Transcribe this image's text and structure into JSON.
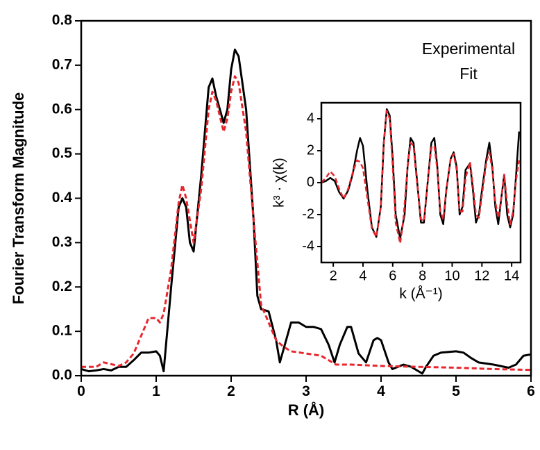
{
  "chart_data": [
    {
      "type": "line",
      "xlabel": "R (Å)",
      "ylabel": "Fourier Transform Magnitude",
      "xlim": [
        0,
        6
      ],
      "ylim": [
        0,
        0.8
      ],
      "xticks": [
        0,
        1,
        2,
        3,
        4,
        5,
        6
      ],
      "yticks": [
        {
          "value": 0,
          "label": "0.0"
        },
        0.1,
        0.2,
        0.3,
        0.4,
        0.5,
        0.6,
        0.7,
        0.8
      ],
      "legend": "upper right",
      "series": [
        {
          "name": "Experimental",
          "color": "#000000",
          "line_style": "solid",
          "x": [
            0,
            0.1,
            0.2,
            0.3,
            0.4,
            0.5,
            0.6,
            0.7,
            0.8,
            0.9,
            1.0,
            1.05,
            1.1,
            1.2,
            1.3,
            1.35,
            1.4,
            1.45,
            1.5,
            1.6,
            1.7,
            1.75,
            1.8,
            1.9,
            1.95,
            2.0,
            2.05,
            2.1,
            2.2,
            2.3,
            2.35,
            2.4,
            2.5,
            2.6,
            2.65,
            2.7,
            2.8,
            2.9,
            3.0,
            3.1,
            3.2,
            3.3,
            3.38,
            3.45,
            3.55,
            3.6,
            3.7,
            3.8,
            3.9,
            3.95,
            4.0,
            4.1,
            4.15,
            4.3,
            4.4,
            4.5,
            4.55,
            4.6,
            4.7,
            4.8,
            5.0,
            5.1,
            5.2,
            5.3,
            5.5,
            5.7,
            5.8,
            5.9,
            6.0
          ],
          "values": [
            0.015,
            0.01,
            0.012,
            0.015,
            0.012,
            0.02,
            0.02,
            0.035,
            0.052,
            0.052,
            0.055,
            0.045,
            0.01,
            0.2,
            0.38,
            0.4,
            0.38,
            0.3,
            0.28,
            0.45,
            0.65,
            0.67,
            0.63,
            0.57,
            0.6,
            0.69,
            0.735,
            0.72,
            0.6,
            0.35,
            0.18,
            0.15,
            0.145,
            0.08,
            0.03,
            0.06,
            0.12,
            0.12,
            0.11,
            0.11,
            0.105,
            0.07,
            0.03,
            0.07,
            0.11,
            0.11,
            0.05,
            0.03,
            0.08,
            0.085,
            0.08,
            0.03,
            0.015,
            0.025,
            0.02,
            0.01,
            0.005,
            0.02,
            0.045,
            0.052,
            0.055,
            0.052,
            0.04,
            0.03,
            0.025,
            0.018,
            0.025,
            0.045,
            0.048
          ]
        },
        {
          "name": "Fit",
          "color": "#e8262d",
          "line_style": "dashed",
          "x": [
            0,
            0.2,
            0.3,
            0.5,
            0.6,
            0.7,
            0.8,
            0.9,
            1.0,
            1.05,
            1.1,
            1.2,
            1.3,
            1.35,
            1.4,
            1.5,
            1.6,
            1.7,
            1.75,
            1.8,
            1.9,
            1.95,
            2.0,
            2.05,
            2.1,
            2.2,
            2.3,
            2.4,
            2.5,
            2.6,
            2.7,
            2.8,
            3.0,
            3.2,
            3.3,
            3.4,
            3.6,
            4.0,
            4.5,
            5.0,
            5.5,
            6.0
          ],
          "values": [
            0.02,
            0.02,
            0.03,
            0.022,
            0.03,
            0.05,
            0.09,
            0.13,
            0.13,
            0.12,
            0.14,
            0.24,
            0.39,
            0.43,
            0.4,
            0.3,
            0.42,
            0.6,
            0.64,
            0.62,
            0.55,
            0.58,
            0.64,
            0.675,
            0.66,
            0.55,
            0.35,
            0.16,
            0.12,
            0.08,
            0.065,
            0.055,
            0.05,
            0.045,
            0.035,
            0.025,
            0.025,
            0.022,
            0.02,
            0.018,
            0.015,
            0.013
          ]
        }
      ]
    },
    {
      "type": "line",
      "xlabel": "k (Å⁻¹)",
      "ylabel": "k³ · χ(k)",
      "xlim": [
        1.2,
        14.6
      ],
      "ylim": [
        -5,
        5
      ],
      "xticks": [
        2,
        4,
        6,
        8,
        10,
        12,
        14
      ],
      "yticks": [
        -4,
        -2,
        0,
        2,
        4
      ],
      "series": [
        {
          "name": "Experimental",
          "color": "#000000",
          "line_style": "solid",
          "x": [
            1.2,
            1.5,
            1.8,
            2.1,
            2.4,
            2.7,
            3.0,
            3.3,
            3.6,
            3.8,
            4.0,
            4.3,
            4.6,
            4.9,
            5.2,
            5.4,
            5.6,
            5.8,
            6.0,
            6.2,
            6.5,
            6.8,
            7.0,
            7.2,
            7.4,
            7.6,
            7.9,
            8.1,
            8.4,
            8.6,
            8.8,
            9.0,
            9.2,
            9.4,
            9.6,
            9.9,
            10.1,
            10.3,
            10.5,
            10.7,
            10.9,
            11.2,
            11.4,
            11.6,
            11.8,
            12.0,
            12.3,
            12.5,
            12.7,
            12.9,
            13.1,
            13.3,
            13.5,
            13.7,
            13.9,
            14.1,
            14.3,
            14.5
          ],
          "values": [
            0.0,
            0.1,
            0.3,
            0.1,
            -0.6,
            -1.0,
            -0.5,
            0.5,
            2.0,
            2.8,
            2.3,
            -0.5,
            -2.8,
            -3.4,
            -1.5,
            2.5,
            4.6,
            4.2,
            1.5,
            -2.0,
            -3.5,
            -2.0,
            1.0,
            2.8,
            2.5,
            0.5,
            -2.5,
            -2.5,
            0.5,
            2.5,
            2.8,
            1.0,
            -2.0,
            -2.6,
            -0.5,
            1.5,
            1.9,
            1.0,
            -2.0,
            -1.5,
            0.8,
            1.2,
            -0.5,
            -2.5,
            -2.0,
            -0.5,
            1.5,
            2.5,
            1.0,
            -1.5,
            -2.6,
            -1.0,
            0.5,
            -2.0,
            -2.8,
            -2.0,
            0.5,
            3.2
          ]
        },
        {
          "name": "Fit",
          "color": "#e8262d",
          "line_style": "dashed",
          "x": [
            1.2,
            1.5,
            1.8,
            2.1,
            2.4,
            2.7,
            3.0,
            3.3,
            3.6,
            3.8,
            4.0,
            4.3,
            4.6,
            4.9,
            5.2,
            5.4,
            5.6,
            5.8,
            6.0,
            6.2,
            6.5,
            6.7,
            7.0,
            7.2,
            7.4,
            7.6,
            7.9,
            8.1,
            8.4,
            8.6,
            8.8,
            9.0,
            9.2,
            9.4,
            9.6,
            9.9,
            10.1,
            10.3,
            10.5,
            10.7,
            10.9,
            11.2,
            11.4,
            11.6,
            11.8,
            12.0,
            12.3,
            12.5,
            12.7,
            12.9,
            13.1,
            13.3,
            13.5,
            13.7,
            13.9,
            14.1,
            14.3,
            14.5
          ],
          "values": [
            0.0,
            0.3,
            0.7,
            0.4,
            -0.4,
            -1.0,
            -0.4,
            0.6,
            1.4,
            1.3,
            0.9,
            -1.0,
            -2.9,
            -3.4,
            -1.5,
            2.5,
            4.5,
            4.0,
            1.0,
            -2.5,
            -3.8,
            -2.5,
            1.0,
            2.5,
            2.3,
            0.3,
            -2.3,
            -2.4,
            0.5,
            2.2,
            2.3,
            0.8,
            -1.8,
            -2.3,
            -0.5,
            1.5,
            1.8,
            0.8,
            -1.8,
            -1.8,
            0.3,
            1.3,
            -0.2,
            -2.0,
            -2.2,
            -0.8,
            1.3,
            1.9,
            0.8,
            -1.2,
            -2.2,
            -1.0,
            0.5,
            -1.3,
            -2.6,
            -1.8,
            0.2,
            1.4
          ]
        }
      ]
    }
  ]
}
